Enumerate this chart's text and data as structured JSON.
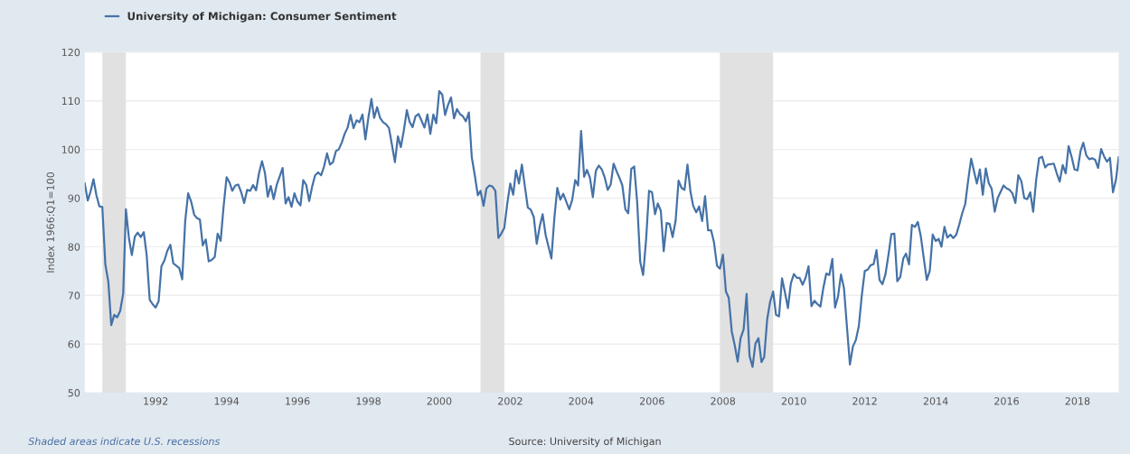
{
  "chart_data": {
    "type": "line",
    "ylabel": "Index 1966:Q1=100",
    "annotations": [
      "Shaded areas indicate U.S. recessions",
      "Source: University of Michigan"
    ],
    "legend": "top left",
    "grid": "y",
    "xlim": [
      "1990-01",
      "2019-03"
    ],
    "xticks": [
      "1992",
      "1994",
      "1996",
      "1998",
      "2000",
      "2002",
      "2004",
      "2006",
      "2008",
      "2010",
      "2012",
      "2014",
      "2016",
      "2018"
    ],
    "ylim": [
      50,
      120
    ],
    "yticks": [
      50,
      60,
      70,
      80,
      90,
      100,
      110,
      120
    ],
    "bands": [
      {
        "axis": "x",
        "from": "1990-07",
        "to": "1991-03",
        "color": "#e1e1e1"
      },
      {
        "axis": "x",
        "from": "2001-03",
        "to": "2001-11",
        "color": "#e1e1e1"
      },
      {
        "axis": "x",
        "from": "2007-12",
        "to": "2009-06",
        "color": "#e1e1e1"
      }
    ],
    "x": [
      "1990-01",
      "1990-02",
      "1990-03",
      "1990-04",
      "1990-05",
      "1990-06",
      "1990-07",
      "1990-08",
      "1990-09",
      "1990-10",
      "1990-11",
      "1990-12",
      "1991-01",
      "1991-02",
      "1991-03",
      "1991-04",
      "1991-05",
      "1991-06",
      "1991-07",
      "1991-08",
      "1991-09",
      "1991-10",
      "1991-11",
      "1991-12",
      "1992-01",
      "1992-02",
      "1992-03",
      "1992-04",
      "1992-05",
      "1992-06",
      "1992-07",
      "1992-08",
      "1992-09",
      "1992-10",
      "1992-11",
      "1992-12",
      "1993-01",
      "1993-02",
      "1993-03",
      "1993-04",
      "1993-05",
      "1993-06",
      "1993-07",
      "1993-08",
      "1993-09",
      "1993-10",
      "1993-11",
      "1993-12",
      "1994-01",
      "1994-02",
      "1994-03",
      "1994-04",
      "1994-05",
      "1994-06",
      "1994-07",
      "1994-08",
      "1994-09",
      "1994-10",
      "1994-11",
      "1994-12",
      "1995-01",
      "1995-02",
      "1995-03",
      "1995-04",
      "1995-05",
      "1995-06",
      "1995-07",
      "1995-08",
      "1995-09",
      "1995-10",
      "1995-11",
      "1995-12",
      "1996-01",
      "1996-02",
      "1996-03",
      "1996-04",
      "1996-05",
      "1996-06",
      "1996-07",
      "1996-08",
      "1996-09",
      "1996-10",
      "1996-11",
      "1996-12",
      "1997-01",
      "1997-02",
      "1997-03",
      "1997-04",
      "1997-05",
      "1997-06",
      "1997-07",
      "1997-08",
      "1997-09",
      "1997-10",
      "1997-11",
      "1997-12",
      "1998-01",
      "1998-02",
      "1998-03",
      "1998-04",
      "1998-05",
      "1998-06",
      "1998-07",
      "1998-08",
      "1998-09",
      "1998-10",
      "1998-11",
      "1998-12",
      "1999-01",
      "1999-02",
      "1999-03",
      "1999-04",
      "1999-05",
      "1999-06",
      "1999-07",
      "1999-08",
      "1999-09",
      "1999-10",
      "1999-11",
      "1999-12",
      "2000-01",
      "2000-02",
      "2000-03",
      "2000-04",
      "2000-05",
      "2000-06",
      "2000-07",
      "2000-08",
      "2000-09",
      "2000-10",
      "2000-11",
      "2000-12",
      "2001-01",
      "2001-02",
      "2001-03",
      "2001-04",
      "2001-05",
      "2001-06",
      "2001-07",
      "2001-08",
      "2001-09",
      "2001-10",
      "2001-11",
      "2001-12",
      "2002-01",
      "2002-02",
      "2002-03",
      "2002-04",
      "2002-05",
      "2002-06",
      "2002-07",
      "2002-08",
      "2002-09",
      "2002-10",
      "2002-11",
      "2002-12",
      "2003-01",
      "2003-02",
      "2003-03",
      "2003-04",
      "2003-05",
      "2003-06",
      "2003-07",
      "2003-08",
      "2003-09",
      "2003-10",
      "2003-11",
      "2003-12",
      "2004-01",
      "2004-02",
      "2004-03",
      "2004-04",
      "2004-05",
      "2004-06",
      "2004-07",
      "2004-08",
      "2004-09",
      "2004-10",
      "2004-11",
      "2004-12",
      "2005-01",
      "2005-02",
      "2005-03",
      "2005-04",
      "2005-05",
      "2005-06",
      "2005-07",
      "2005-08",
      "2005-09",
      "2005-10",
      "2005-11",
      "2005-12",
      "2006-01",
      "2006-02",
      "2006-03",
      "2006-04",
      "2006-05",
      "2006-06",
      "2006-07",
      "2006-08",
      "2006-09",
      "2006-10",
      "2006-11",
      "2006-12",
      "2007-01",
      "2007-02",
      "2007-03",
      "2007-04",
      "2007-05",
      "2007-06",
      "2007-07",
      "2007-08",
      "2007-09",
      "2007-10",
      "2007-11",
      "2007-12",
      "2008-01",
      "2008-02",
      "2008-03",
      "2008-04",
      "2008-05",
      "2008-06",
      "2008-07",
      "2008-08",
      "2008-09",
      "2008-10",
      "2008-11",
      "2008-12",
      "2009-01",
      "2009-02",
      "2009-03",
      "2009-04",
      "2009-05",
      "2009-06",
      "2009-07",
      "2009-08",
      "2009-09",
      "2009-10",
      "2009-11",
      "2009-12",
      "2010-01",
      "2010-02",
      "2010-03",
      "2010-04",
      "2010-05",
      "2010-06",
      "2010-07",
      "2010-08",
      "2010-09",
      "2010-10",
      "2010-11",
      "2010-12",
      "2011-01",
      "2011-02",
      "2011-03",
      "2011-04",
      "2011-05",
      "2011-06",
      "2011-07",
      "2011-08",
      "2011-09",
      "2011-10",
      "2011-11",
      "2011-12",
      "2012-01",
      "2012-02",
      "2012-03",
      "2012-04",
      "2012-05",
      "2012-06",
      "2012-07",
      "2012-08",
      "2012-09",
      "2012-10",
      "2012-11",
      "2012-12",
      "2013-01",
      "2013-02",
      "2013-03",
      "2013-04",
      "2013-05",
      "2013-06",
      "2013-07",
      "2013-08",
      "2013-09",
      "2013-10",
      "2013-11",
      "2013-12",
      "2014-01",
      "2014-02",
      "2014-03",
      "2014-04",
      "2014-05",
      "2014-06",
      "2014-07",
      "2014-08",
      "2014-09",
      "2014-10",
      "2014-11",
      "2014-12",
      "2015-01",
      "2015-02",
      "2015-03",
      "2015-04",
      "2015-05",
      "2015-06",
      "2015-07",
      "2015-08",
      "2015-09",
      "2015-10",
      "2015-11",
      "2015-12",
      "2016-01",
      "2016-02",
      "2016-03",
      "2016-04",
      "2016-05",
      "2016-06",
      "2016-07",
      "2016-08",
      "2016-09",
      "2016-10",
      "2016-11",
      "2016-12",
      "2017-01",
      "2017-02",
      "2017-03",
      "2017-04",
      "2017-05",
      "2017-06",
      "2017-07",
      "2017-08",
      "2017-09",
      "2017-10",
      "2017-11",
      "2017-12",
      "2018-01",
      "2018-02",
      "2018-03",
      "2018-04",
      "2018-05",
      "2018-06",
      "2018-07",
      "2018-08",
      "2018-09",
      "2018-10",
      "2018-11",
      "2018-12",
      "2019-01",
      "2019-02",
      "2019-03"
    ],
    "series": [
      {
        "name": "University of Michigan: Consumer Sentiment",
        "color": "#4572a7",
        "values": [
          93.0,
          89.5,
          91.3,
          93.9,
          90.6,
          88.3,
          88.2,
          76.4,
          72.8,
          63.9,
          66.0,
          65.5,
          66.8,
          70.4,
          87.7,
          81.8,
          78.3,
          82.1,
          82.9,
          82.0,
          83.0,
          78.3,
          69.1,
          68.2,
          67.5,
          68.8,
          76.0,
          77.2,
          79.2,
          80.4,
          76.6,
          76.1,
          75.6,
          73.3,
          85.3,
          91.0,
          89.3,
          86.6,
          85.9,
          85.6,
          80.3,
          81.5,
          77.0,
          77.3,
          77.9,
          82.7,
          81.2,
          88.2,
          94.3,
          93.2,
          91.5,
          92.6,
          92.8,
          91.2,
          89.0,
          91.7,
          91.5,
          92.7,
          91.6,
          95.1,
          97.6,
          95.1,
          90.3,
          92.5,
          89.8,
          92.7,
          94.4,
          96.2,
          88.9,
          90.2,
          88.2,
          91.0,
          89.3,
          88.5,
          93.7,
          92.7,
          89.4,
          92.4,
          94.7,
          95.3,
          94.7,
          96.5,
          99.2,
          96.9,
          97.4,
          99.7,
          100.0,
          101.4,
          103.2,
          104.5,
          107.1,
          104.4,
          106.0,
          105.6,
          107.2,
          102.1,
          106.6,
          110.4,
          106.5,
          108.7,
          106.5,
          105.6,
          105.2,
          104.4,
          100.9,
          97.4,
          102.7,
          100.5,
          103.9,
          108.1,
          105.7,
          104.6,
          106.8,
          107.3,
          106.0,
          104.5,
          107.2,
          103.2,
          107.2,
          105.4,
          112.0,
          111.3,
          107.1,
          109.2,
          110.7,
          106.4,
          108.3,
          107.3,
          106.8,
          105.8,
          107.6,
          98.4,
          94.7,
          90.6,
          91.5,
          88.4,
          92.0,
          92.6,
          92.4,
          91.5,
          81.8,
          82.7,
          83.9,
          88.8,
          93.0,
          90.7,
          95.7,
          93.0,
          96.9,
          92.4,
          88.1,
          87.6,
          86.1,
          80.6,
          84.2,
          86.7,
          82.4,
          79.9,
          77.6,
          86.0,
          92.1,
          89.7,
          90.9,
          89.3,
          87.7,
          89.6,
          93.7,
          92.6,
          103.8,
          94.4,
          95.8,
          94.2,
          90.2,
          95.6,
          96.7,
          95.9,
          94.2,
          91.7,
          92.8,
          97.1,
          95.5,
          94.1,
          92.6,
          87.7,
          86.9,
          96.0,
          96.5,
          89.1,
          76.9,
          74.2,
          81.6,
          91.5,
          91.2,
          86.7,
          88.9,
          87.4,
          79.1,
          84.9,
          84.7,
          82.0,
          85.4,
          93.6,
          92.1,
          91.7,
          96.9,
          91.3,
          88.4,
          87.1,
          88.3,
          85.3,
          90.4,
          83.4,
          83.4,
          80.9,
          76.1,
          75.5,
          78.4,
          70.8,
          69.5,
          62.6,
          59.8,
          56.4,
          61.2,
          63.0,
          70.3,
          57.6,
          55.3,
          60.1,
          61.2,
          56.3,
          57.3,
          65.1,
          68.7,
          70.8,
          66.0,
          65.7,
          73.5,
          70.6,
          67.4,
          72.5,
          74.4,
          73.6,
          73.6,
          72.2,
          73.6,
          76.0,
          67.8,
          68.9,
          68.2,
          67.7,
          71.6,
          74.5,
          74.2,
          77.5,
          67.5,
          69.8,
          74.3,
          71.5,
          63.7,
          55.8,
          59.5,
          60.8,
          63.7,
          69.9,
          75.0,
          75.3,
          76.2,
          76.4,
          79.3,
          73.2,
          72.3,
          74.3,
          78.3,
          82.6,
          82.7,
          72.9,
          73.8,
          77.6,
          78.6,
          76.4,
          84.5,
          84.1,
          85.1,
          82.1,
          77.5,
          73.2,
          75.1,
          82.5,
          81.2,
          81.6,
          80.0,
          84.1,
          81.9,
          82.5,
          81.8,
          82.5,
          84.6,
          86.9,
          88.8,
          93.6,
          98.1,
          95.4,
          93.0,
          95.9,
          90.7,
          96.1,
          93.1,
          91.9,
          87.2,
          90.0,
          91.3,
          92.6,
          92.0,
          91.7,
          91.0,
          89.0,
          94.7,
          93.5,
          90.0,
          89.8,
          91.2,
          87.2,
          93.8,
          98.2,
          98.5,
          96.3,
          96.9,
          97.0,
          97.1,
          95.1,
          93.4,
          96.8,
          95.1,
          100.7,
          98.5,
          95.9,
          95.7,
          99.7,
          101.4,
          98.8,
          98.0,
          98.2,
          97.9,
          96.2,
          100.1,
          98.6,
          97.5,
          98.3,
          91.2,
          93.8,
          98.4
        ]
      }
    ]
  }
}
